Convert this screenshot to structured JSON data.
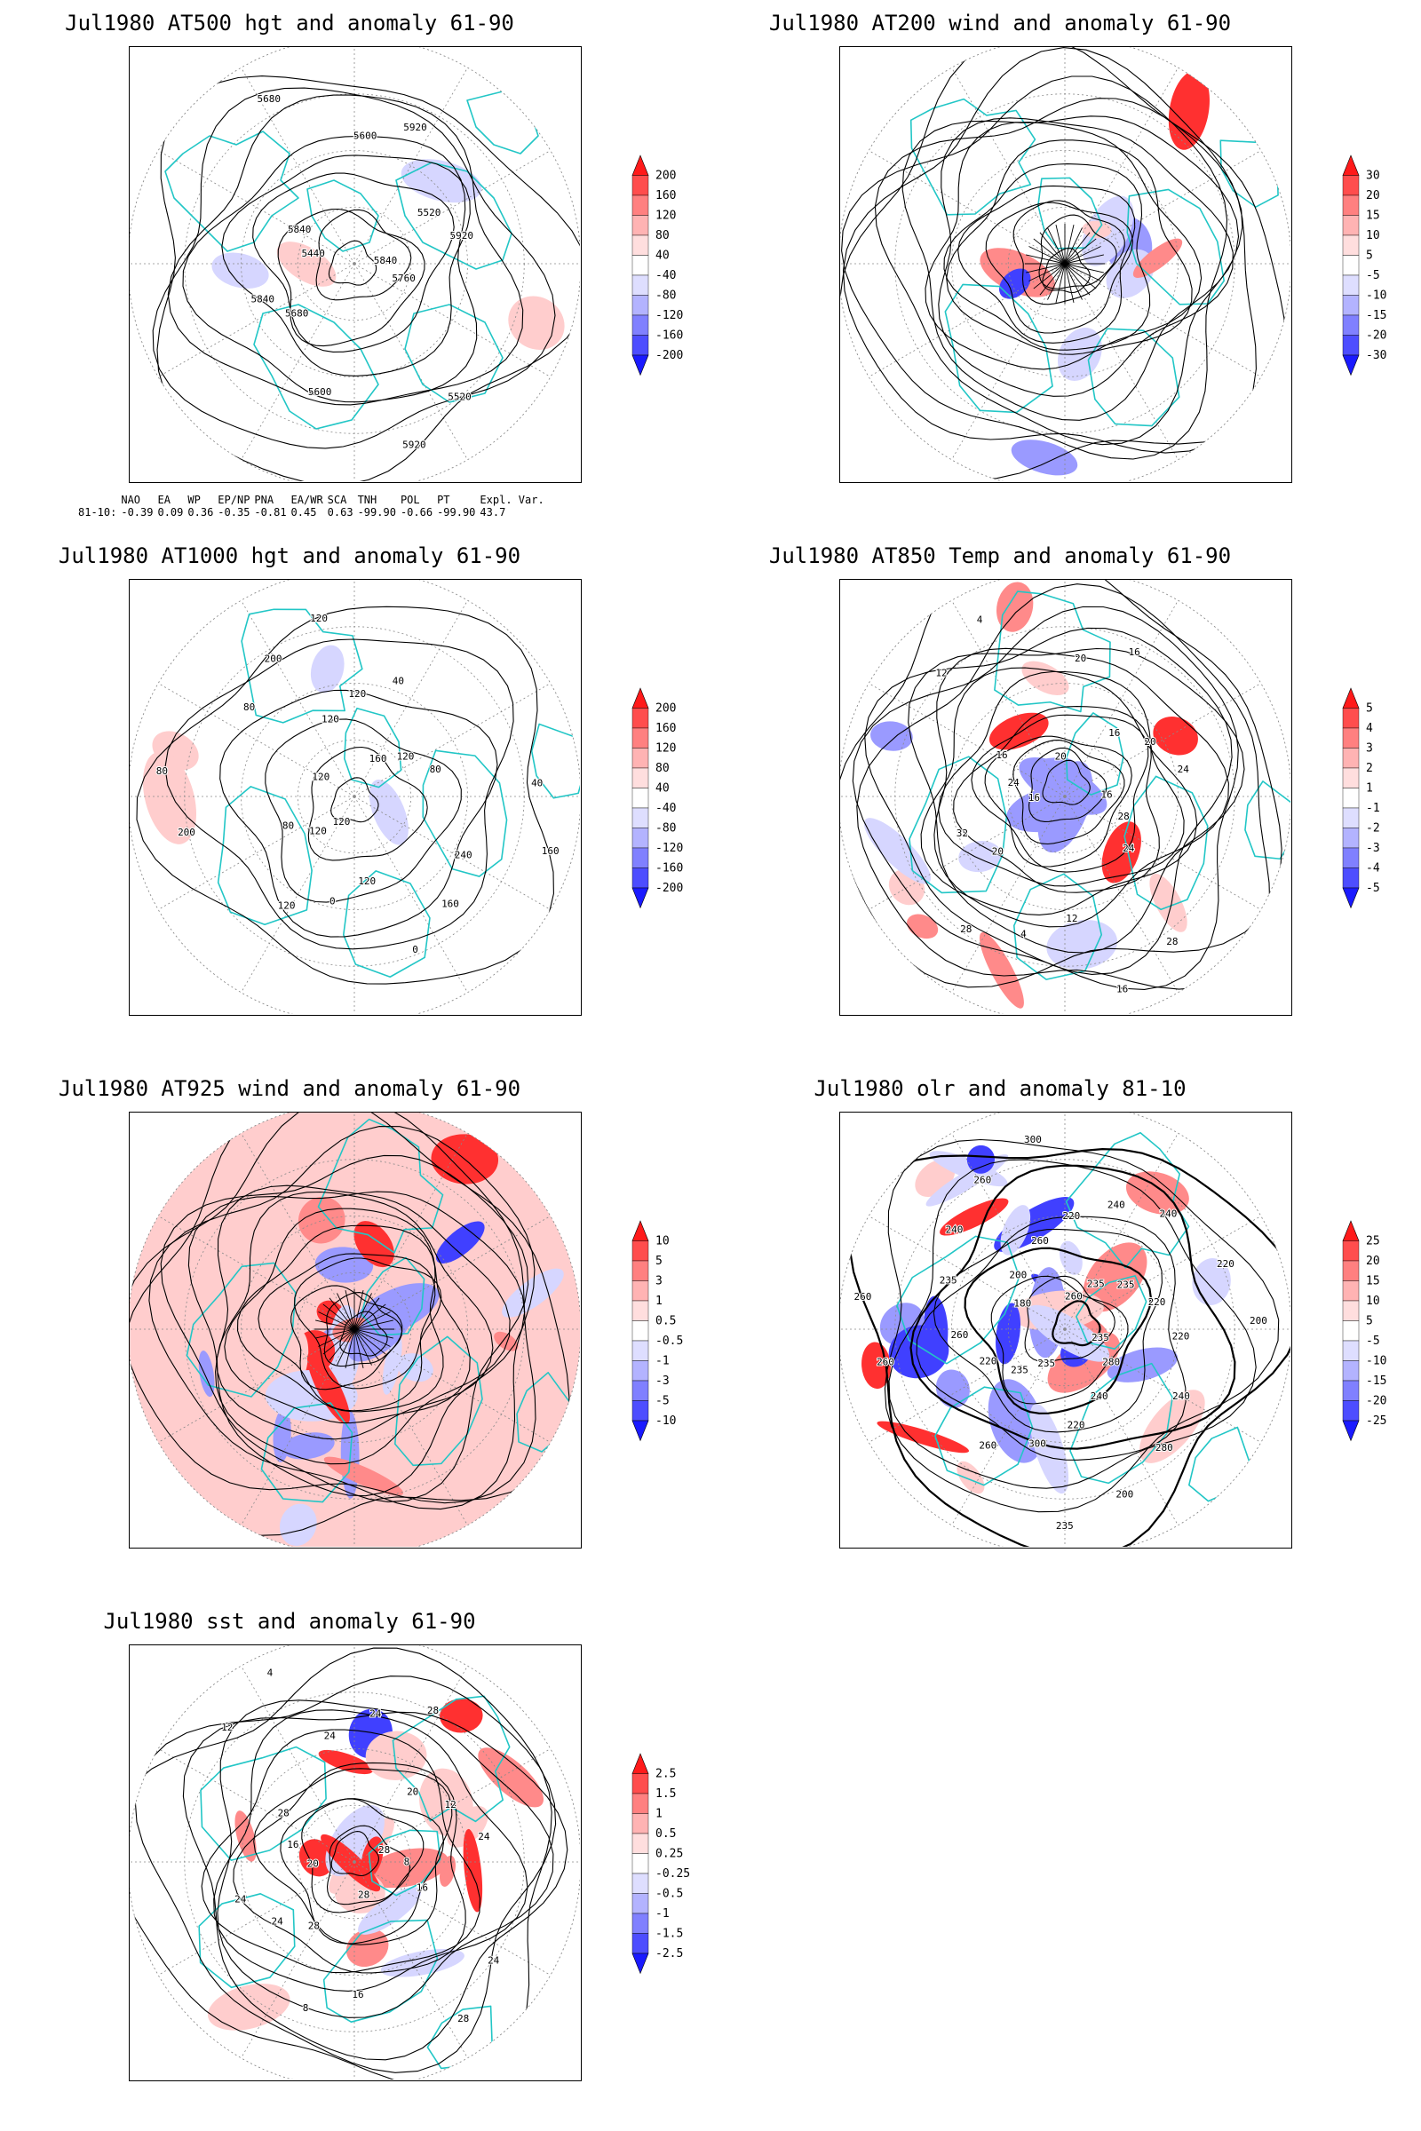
{
  "page": {
    "background": "#ffffff"
  },
  "colors": {
    "coast": "#22c6c6",
    "contour": "#000000",
    "grid": "#8a8a8a",
    "warm_strong": "#ff3030",
    "warm_mid": "#ff8a8a",
    "warm_light": "#ffcdcd",
    "cool_light": "#d6d6ff",
    "cool_mid": "#9a9aff",
    "cool_strong": "#4040ff"
  },
  "panels": [
    {
      "id": "at500",
      "title": "Jul1980 AT500 hgt and anomaly 61-90",
      "colorbar": {
        "labels": [
          "200",
          "160",
          "120",
          "80",
          "40",
          "-40",
          "-80",
          "-120",
          "-160",
          "-200"
        ],
        "colors": [
          "#ff1a1a",
          "#ff4d4d",
          "#ff8080",
          "#ffb3b3",
          "#ffdede",
          "#ffffff",
          "#dedeff",
          "#b3b3ff",
          "#8080ff",
          "#4d4dff",
          "#1a1aff"
        ]
      },
      "contour_labels": [
        "5840",
        "5680",
        "5600",
        "5520",
        "5440",
        "5520",
        "5600",
        "5680",
        "5760",
        "5840",
        "5920",
        "5920",
        "5840",
        "5920"
      ],
      "teleconnections": {
        "headers": [
          "NAO",
          "EA",
          "WP",
          "EP/NP",
          "PNA",
          "EA/WR",
          "SCA",
          "TNH",
          "POL",
          "PT",
          "Expl. Var."
        ],
        "row_label": "81-10:",
        "values": [
          "-0.39",
          "0.09",
          "0.36",
          "-0.35",
          "-0.81",
          "0.45",
          "0.63",
          "-99.90",
          "-0.66",
          "-99.90",
          "43.7"
        ]
      }
    },
    {
      "id": "at200",
      "title": "Jul1980 AT200 wind and anomaly 61-90",
      "colorbar": {
        "labels": [
          "30",
          "20",
          "15",
          "10",
          "5",
          "-5",
          "-10",
          "-15",
          "-20",
          "-30"
        ],
        "colors": [
          "#ff1a1a",
          "#ff4d4d",
          "#ff8080",
          "#ffb3b3",
          "#ffdede",
          "#ffffff",
          "#dedeff",
          "#b3b3ff",
          "#8080ff",
          "#4d4dff",
          "#1a1aff"
        ]
      },
      "contour_labels": []
    },
    {
      "id": "at1000",
      "title": "Jul1980 AT1000 hgt and anomaly 61-90",
      "colorbar": {
        "labels": [
          "200",
          "160",
          "120",
          "80",
          "40",
          "-40",
          "-80",
          "-120",
          "-160",
          "-200"
        ],
        "colors": [
          "#ff1a1a",
          "#ff4d4d",
          "#ff8080",
          "#ffb3b3",
          "#ffdede",
          "#ffffff",
          "#dedeff",
          "#b3b3ff",
          "#8080ff",
          "#4d4dff",
          "#1a1aff"
        ]
      },
      "contour_labels": [
        "120",
        "120",
        "240",
        "200",
        "160",
        "120",
        "80",
        "40",
        "120",
        "120",
        "160",
        "80",
        "120",
        "0",
        "200",
        "160",
        "80",
        "40",
        "0",
        "120",
        "80",
        "120",
        "120"
      ]
    },
    {
      "id": "at850",
      "title": "Jul1980 AT850 Temp and anomaly 61-90",
      "colorbar": {
        "labels": [
          "5",
          "4",
          "3",
          "2",
          "1",
          "-1",
          "-2",
          "-3",
          "-4",
          "-5"
        ],
        "colors": [
          "#ff1a1a",
          "#ff4d4d",
          "#ff8080",
          "#ffb3b3",
          "#ffdede",
          "#ffffff",
          "#dedeff",
          "#b3b3ff",
          "#8080ff",
          "#4d4dff",
          "#1a1aff"
        ]
      },
      "contour_labels": [
        "16",
        "16",
        "12",
        "12",
        "16",
        "20",
        "20",
        "28",
        "24",
        "20",
        "4",
        "4",
        "28",
        "32",
        "16",
        "16",
        "16",
        "24",
        "28",
        "20",
        "24"
      ]
    },
    {
      "id": "at925",
      "title": "Jul1980 AT925 wind and anomaly 61-90",
      "colorbar": {
        "labels": [
          "10",
          "5",
          "3",
          "1",
          "0.5",
          "-0.5",
          "-1",
          "-3",
          "-5",
          "-10"
        ],
        "colors": [
          "#ff1a1a",
          "#ff4d4d",
          "#ff8080",
          "#ffb3b3",
          "#ffdede",
          "#ffffff",
          "#dedeff",
          "#b3b3ff",
          "#8080ff",
          "#4d4dff",
          "#1a1aff"
        ]
      },
      "contour_labels": []
    },
    {
      "id": "olr",
      "title": "Jul1980 olr and anomaly 81-10",
      "colorbar": {
        "labels": [
          "25",
          "20",
          "15",
          "10",
          "5",
          "-5",
          "-10",
          "-15",
          "-20",
          "-25"
        ],
        "colors": [
          "#ff1a1a",
          "#ff4d4d",
          "#ff8080",
          "#ffb3b3",
          "#ffdede",
          "#ffffff",
          "#dedeff",
          "#b3b3ff",
          "#8080ff",
          "#4d4dff",
          "#1a1aff"
        ]
      },
      "contour_labels": [
        "260",
        "240",
        "235",
        "220",
        "235",
        "260",
        "240",
        "260",
        "235",
        "220",
        "240",
        "200",
        "235",
        "220",
        "280",
        "260",
        "235",
        "300",
        "260",
        "235",
        "220",
        "240",
        "200",
        "180",
        "220",
        "260",
        "300",
        "280",
        "260",
        "240",
        "235",
        "200",
        "220"
      ]
    },
    {
      "id": "sst",
      "title": "Jul1980 sst and anomaly 61-90",
      "colorbar": {
        "labels": [
          "2.5",
          "1.5",
          "1",
          "0.5",
          "0.25",
          "-0.25",
          "-0.5",
          "-1",
          "-1.5",
          "-2.5"
        ],
        "colors": [
          "#ff1a1a",
          "#ff4d4d",
          "#ff8080",
          "#ffb3b3",
          "#ffdede",
          "#ffffff",
          "#dedeff",
          "#b3b3ff",
          "#8080ff",
          "#4d4dff",
          "#1a1aff"
        ]
      },
      "contour_labels": [
        "28",
        "28",
        "24",
        "24",
        "20",
        "20",
        "16",
        "12",
        "8",
        "24",
        "24",
        "28",
        "16",
        "12",
        "8",
        "4",
        "16",
        "24",
        "28",
        "28",
        "28",
        "24"
      ]
    }
  ]
}
